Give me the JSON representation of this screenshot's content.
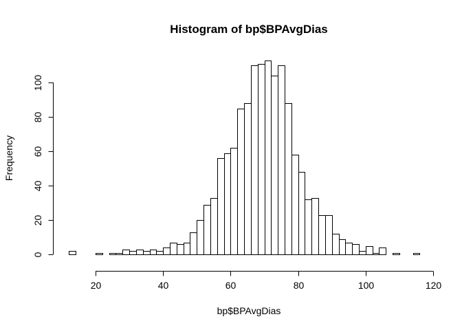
{
  "chart_data": {
    "type": "bar",
    "title": "Histogram of bp$BPAvgDias",
    "xlabel": "bp$BPAvgDias",
    "ylabel": "Frequency",
    "bin_width": 2,
    "bins": [
      [
        12,
        14,
        2
      ],
      [
        14,
        16,
        0
      ],
      [
        16,
        18,
        0
      ],
      [
        18,
        20,
        0
      ],
      [
        20,
        22,
        1
      ],
      [
        22,
        24,
        0
      ],
      [
        24,
        26,
        1
      ],
      [
        26,
        28,
        1
      ],
      [
        28,
        30,
        3
      ],
      [
        30,
        32,
        2
      ],
      [
        32,
        34,
        3
      ],
      [
        34,
        36,
        2
      ],
      [
        36,
        38,
        3
      ],
      [
        38,
        40,
        2
      ],
      [
        40,
        42,
        4
      ],
      [
        42,
        44,
        7
      ],
      [
        44,
        46,
        6
      ],
      [
        46,
        48,
        7
      ],
      [
        48,
        50,
        13
      ],
      [
        50,
        52,
        20
      ],
      [
        52,
        54,
        29
      ],
      [
        54,
        56,
        33
      ],
      [
        56,
        58,
        56
      ],
      [
        58,
        60,
        59
      ],
      [
        60,
        62,
        62
      ],
      [
        62,
        64,
        85
      ],
      [
        64,
        66,
        88
      ],
      [
        66,
        68,
        110
      ],
      [
        68,
        70,
        111
      ],
      [
        70,
        72,
        113
      ],
      [
        72,
        74,
        104
      ],
      [
        74,
        76,
        110
      ],
      [
        76,
        78,
        88
      ],
      [
        78,
        80,
        58
      ],
      [
        80,
        82,
        48
      ],
      [
        82,
        84,
        32
      ],
      [
        84,
        86,
        33
      ],
      [
        86,
        88,
        23
      ],
      [
        88,
        90,
        23
      ],
      [
        90,
        92,
        12
      ],
      [
        92,
        94,
        9
      ],
      [
        94,
        96,
        7
      ],
      [
        96,
        98,
        6
      ],
      [
        98,
        100,
        2
      ],
      [
        100,
        102,
        5
      ],
      [
        102,
        104,
        1
      ],
      [
        104,
        106,
        4
      ],
      [
        106,
        108,
        0
      ],
      [
        108,
        110,
        1
      ],
      [
        110,
        112,
        0
      ],
      [
        112,
        114,
        0
      ],
      [
        114,
        116,
        1
      ]
    ],
    "x_ticks": [
      "20",
      "40",
      "60",
      "80",
      "100",
      "120"
    ],
    "y_ticks": [
      "0",
      "20",
      "40",
      "60",
      "80",
      "100"
    ],
    "xlim": [
      20,
      120
    ],
    "ylim": [
      0,
      100
    ],
    "grid": false,
    "legend": "none"
  }
}
